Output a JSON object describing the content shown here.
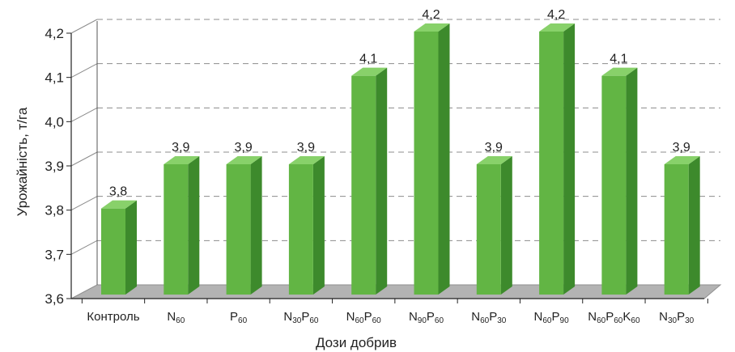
{
  "chart_data": {
    "type": "bar",
    "style": "3d",
    "categories": [
      {
        "parts": [
          {
            "t": "Контроль",
            "sub": false
          }
        ]
      },
      {
        "parts": [
          {
            "t": "N",
            "sub": false
          },
          {
            "t": "60",
            "sub": true
          }
        ]
      },
      {
        "parts": [
          {
            "t": "P",
            "sub": false
          },
          {
            "t": "60",
            "sub": true
          }
        ]
      },
      {
        "parts": [
          {
            "t": "N",
            "sub": false
          },
          {
            "t": "30",
            "sub": true
          },
          {
            "t": "P",
            "sub": false
          },
          {
            "t": "60",
            "sub": true
          }
        ]
      },
      {
        "parts": [
          {
            "t": "N",
            "sub": false
          },
          {
            "t": "60",
            "sub": true
          },
          {
            "t": "P",
            "sub": false
          },
          {
            "t": "60",
            "sub": true
          }
        ]
      },
      {
        "parts": [
          {
            "t": "N",
            "sub": false
          },
          {
            "t": "90",
            "sub": true
          },
          {
            "t": "P",
            "sub": false
          },
          {
            "t": "60",
            "sub": true
          }
        ]
      },
      {
        "parts": [
          {
            "t": "N",
            "sub": false
          },
          {
            "t": "60",
            "sub": true
          },
          {
            "t": "P",
            "sub": false
          },
          {
            "t": "30",
            "sub": true
          }
        ]
      },
      {
        "parts": [
          {
            "t": "N",
            "sub": false
          },
          {
            "t": "60",
            "sub": true
          },
          {
            "t": "P",
            "sub": false
          },
          {
            "t": "90",
            "sub": true
          }
        ]
      },
      {
        "parts": [
          {
            "t": "N",
            "sub": false
          },
          {
            "t": "60",
            "sub": true
          },
          {
            "t": "P",
            "sub": false
          },
          {
            "t": "60",
            "sub": true
          },
          {
            "t": "K",
            "sub": false
          },
          {
            "t": "60",
            "sub": true
          }
        ]
      },
      {
        "parts": [
          {
            "t": "N",
            "sub": false
          },
          {
            "t": "30",
            "sub": true
          },
          {
            "t": "P",
            "sub": false
          },
          {
            "t": "30",
            "sub": true
          }
        ]
      }
    ],
    "values": [
      3.8,
      3.9,
      3.9,
      3.9,
      4.1,
      4.2,
      3.9,
      4.2,
      4.1,
      3.9
    ],
    "data_labels": [
      "3,8",
      "3,9",
      "3,9",
      "3,9",
      "4,1",
      "4,2",
      "3,9",
      "4,2",
      "4,1",
      "3,9"
    ],
    "xlabel": "Дози добрив",
    "ylabel": "Урожайність, т/га",
    "ylim": [
      3.6,
      4.2
    ],
    "yticks": [
      3.6,
      3.7,
      3.8,
      3.9,
      4.0,
      4.1,
      4.2
    ],
    "ytick_labels": [
      "3,6",
      "3,7",
      "3,8",
      "3,9",
      "4,0",
      "4,1",
      "4,2"
    ],
    "grid": true,
    "legend": "none",
    "colors": {
      "bar_front": "#62b544",
      "bar_side": "#3d8a2c",
      "bar_top": "#88d16a",
      "floor": "#b3b3b3",
      "grid": "#8c8c8c"
    }
  }
}
